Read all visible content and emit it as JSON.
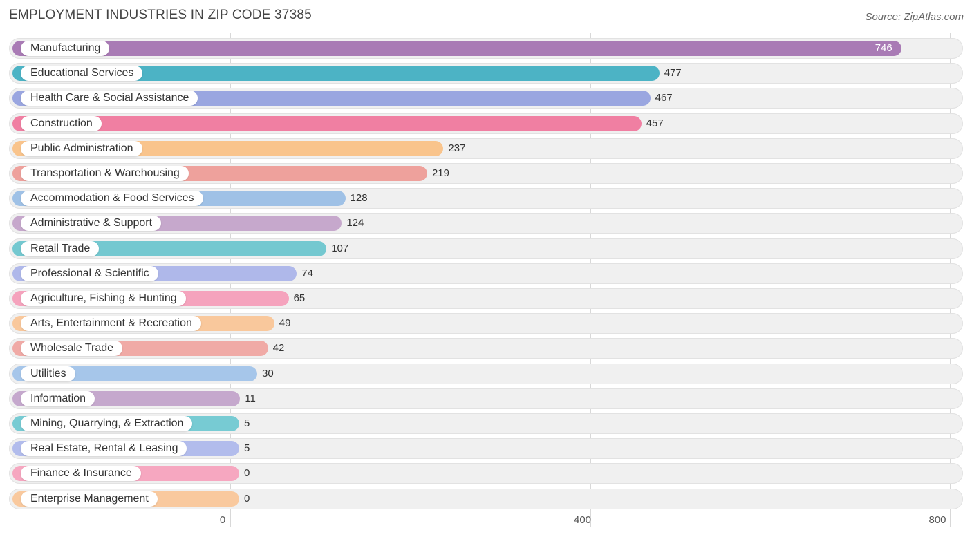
{
  "header": {
    "title": "EMPLOYMENT INDUSTRIES IN ZIP CODE 37385",
    "source": "Source: ZipAtlas.com"
  },
  "chart_data": {
    "type": "bar",
    "orientation": "horizontal",
    "title": "EMPLOYMENT INDUSTRIES IN ZIP CODE 37385",
    "xlabel": "",
    "ylabel": "",
    "xlim": [
      0,
      800
    ],
    "ticks": [
      0,
      400,
      800
    ],
    "tick_labels": [
      "0",
      "400",
      "800"
    ],
    "categories": [
      "Manufacturing",
      "Educational Services",
      "Health Care & Social Assistance",
      "Construction",
      "Public Administration",
      "Transportation & Warehousing",
      "Accommodation & Food Services",
      "Administrative & Support",
      "Retail Trade",
      "Professional & Scientific",
      "Agriculture, Fishing & Hunting",
      "Arts, Entertainment & Recreation",
      "Wholesale Trade",
      "Utilities",
      "Information",
      "Mining, Quarrying, & Extraction",
      "Real Estate, Rental & Leasing",
      "Finance & Insurance",
      "Enterprise Management"
    ],
    "values": [
      746,
      477,
      467,
      457,
      237,
      219,
      128,
      124,
      107,
      74,
      65,
      49,
      42,
      30,
      11,
      5,
      5,
      0,
      0
    ],
    "value_labels": [
      "746",
      "477",
      "467",
      "457",
      "237",
      "219",
      "128",
      "124",
      "107",
      "74",
      "65",
      "49",
      "42",
      "30",
      "11",
      "5",
      "5",
      "0",
      "0"
    ],
    "colors": [
      "#a97bb5",
      "#4cb3c5",
      "#9aa6e0",
      "#f07fa2",
      "#f9c48c",
      "#eea19c",
      "#9fc1e6",
      "#c6a8cc",
      "#74c8d0",
      "#afb8ea",
      "#f5a3bd",
      "#f9c89c",
      "#f0aaa6",
      "#a6c6ea",
      "#c5a8cd",
      "#77cbd3",
      "#b2bcec",
      "#f6a7c0",
      "#f9c99e"
    ]
  }
}
